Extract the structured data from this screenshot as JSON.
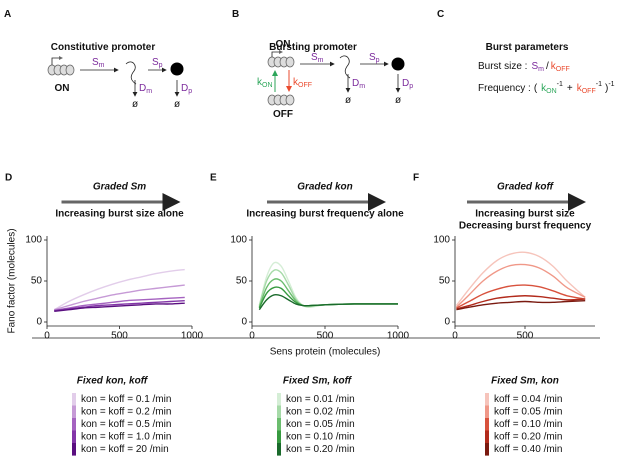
{
  "panels": {
    "a": {
      "letter": "A",
      "title": "Constitutive promoter",
      "state": "ON",
      "sm": {
        "b": "S",
        "s": "m"
      },
      "sp": {
        "b": "S",
        "s": "p"
      },
      "dm": {
        "b": "D",
        "s": "m"
      },
      "dp": {
        "b": "D",
        "s": "p"
      },
      "null_m": "ø",
      "null_p": "ø"
    },
    "b": {
      "letter": "B",
      "title": "Bursting promoter",
      "on": "ON",
      "off": "OFF",
      "kon": {
        "b": "k",
        "s": "ON"
      },
      "koff": {
        "b": "k",
        "s": "OFF"
      },
      "sm": {
        "b": "S",
        "s": "m"
      },
      "sp": {
        "b": "S",
        "s": "p"
      },
      "dm": {
        "b": "D",
        "s": "m"
      },
      "dp": {
        "b": "D",
        "s": "p"
      },
      "null_m": "ø",
      "null_p": "ø"
    },
    "c": {
      "letter": "C",
      "title": "Burst parameters",
      "size": {
        "label": "Burst size :",
        "sm": {
          "b": "S",
          "s": "m"
        },
        "slash": "/",
        "koff": {
          "b": "k",
          "s": "OFF"
        }
      },
      "frequency": {
        "label": "Frequency :",
        "open": "(",
        "kon": {
          "b": "k",
          "s": "ON"
        },
        "sup1": "-1",
        "plus": "+",
        "koff": {
          "b": "k",
          "s": "OFF"
        },
        "sup2": "-1",
        "close": ")",
        "sup3": "-1"
      }
    }
  },
  "chart_data": [
    {
      "type": "line",
      "letter": "D",
      "title": "Graded Sm",
      "subtitle": [
        "Increasing burst size alone"
      ],
      "ylabel": "Fano factor (molecules)",
      "xlim": [
        0,
        1000
      ],
      "xticks": [
        0,
        500,
        1000
      ],
      "ylim": [
        0,
        100
      ],
      "yticks": [
        0,
        50,
        100
      ],
      "x": [
        50,
        150,
        250,
        350,
        450,
        550,
        650,
        750,
        850,
        950
      ],
      "legend_title": "Fixed kon, koff",
      "series": [
        {
          "name": "kon = koff = 0.1 /min",
          "color": "#e2cdea",
          "values": [
            15,
            25,
            33,
            40,
            46,
            51,
            55,
            59,
            62,
            64
          ]
        },
        {
          "name": "kon = koff = 0.2 /min",
          "color": "#c69ad6",
          "values": [
            15,
            20,
            25,
            29,
            33,
            36,
            39,
            41,
            43,
            45
          ]
        },
        {
          "name": "kon = koff = 0.5 /min",
          "color": "#a563c0",
          "values": [
            14,
            17,
            20,
            22,
            24,
            26,
            27,
            28,
            29,
            30
          ]
        },
        {
          "name": "kon = koff = 1.0 /min",
          "color": "#8336a8",
          "values": [
            14,
            16,
            18,
            20,
            21,
            22,
            23,
            24,
            25,
            26
          ]
        },
        {
          "name": "kon = koff = 20 /min",
          "color": "#5a0f80",
          "values": [
            13,
            15,
            17,
            18,
            19,
            20,
            21,
            22,
            22,
            23
          ]
        }
      ]
    },
    {
      "type": "line",
      "letter": "E",
      "title": "Graded kon",
      "subtitle": [
        "Increasing burst frequency alone"
      ],
      "xlabel": "Sens protein (molecules)",
      "xlim": [
        0,
        1000
      ],
      "xticks": [
        0,
        500,
        1000
      ],
      "ylim": [
        0,
        100
      ],
      "yticks": [
        0,
        50,
        100
      ],
      "x": [
        50,
        100,
        150,
        200,
        250,
        300,
        350,
        400,
        500,
        700,
        1000
      ],
      "legend_title": "Fixed Sm, koff",
      "series": [
        {
          "name": "kon = 0.01 /min",
          "color": "#d5eed6",
          "values": [
            20,
            55,
            72,
            68,
            50,
            30,
            20,
            18,
            21,
            22,
            22
          ]
        },
        {
          "name": "kon = 0.02 /min",
          "color": "#a6daa8",
          "values": [
            20,
            50,
            63,
            60,
            45,
            28,
            20,
            19,
            21,
            22,
            22
          ]
        },
        {
          "name": "kon = 0.05 /min",
          "color": "#6bbd6e",
          "values": [
            18,
            42,
            52,
            50,
            38,
            26,
            20,
            20,
            21,
            22,
            22
          ]
        },
        {
          "name": "kon = 0.10 /min",
          "color": "#379a40",
          "values": [
            17,
            35,
            42,
            41,
            32,
            24,
            20,
            20,
            21,
            22,
            22
          ]
        },
        {
          "name": "kon = 0.20 /min",
          "color": "#1a6a2b",
          "values": [
            15,
            27,
            33,
            32,
            27,
            22,
            20,
            20,
            21,
            22,
            22
          ]
        }
      ]
    },
    {
      "type": "line",
      "letter": "F",
      "title": "Graded koff",
      "subtitle": [
        "Increasing burst size",
        "Decreasing burst frequency"
      ],
      "xlim": [
        0,
        1000
      ],
      "xticks": [
        0,
        500
      ],
      "ylim": [
        0,
        100
      ],
      "yticks": [
        0,
        50,
        100
      ],
      "x": [
        10,
        100,
        200,
        300,
        400,
        500,
        600,
        700,
        800,
        930
      ],
      "legend_title": "Fixed Sm, kon",
      "series": [
        {
          "name": "koff = 0.04 /min",
          "color": "#f6c4bb",
          "values": [
            20,
            40,
            60,
            75,
            83,
            85,
            80,
            68,
            50,
            30
          ]
        },
        {
          "name": "koff = 0.05 /min",
          "color": "#f09888",
          "values": [
            18,
            33,
            50,
            62,
            69,
            70,
            66,
            56,
            42,
            30
          ]
        },
        {
          "name": "koff = 0.10 /min",
          "color": "#d8523d",
          "values": [
            17,
            25,
            34,
            40,
            44,
            45,
            43,
            38,
            32,
            28
          ]
        },
        {
          "name": "koff = 0.20 /min",
          "color": "#b22b1c",
          "values": [
            16,
            20,
            25,
            29,
            31,
            32,
            31,
            29,
            27,
            28
          ]
        },
        {
          "name": "koff = 0.40 /min",
          "color": "#7a1a10",
          "values": [
            15,
            18,
            21,
            23,
            24,
            25,
            24,
            24,
            25,
            26
          ]
        }
      ]
    }
  ]
}
